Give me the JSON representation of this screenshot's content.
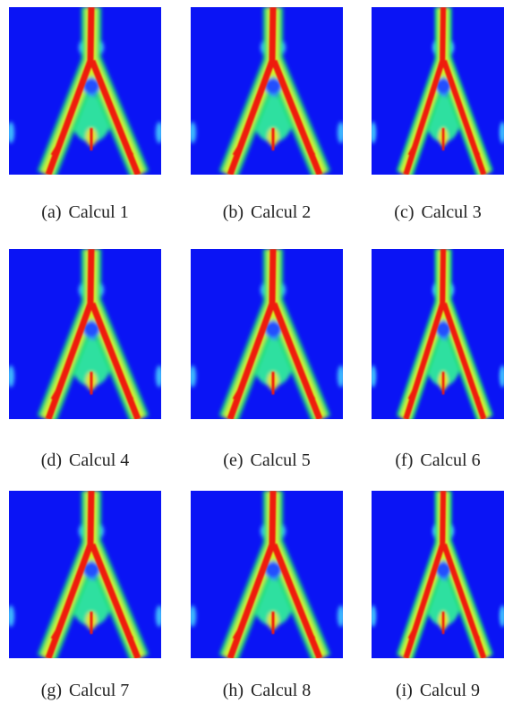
{
  "figure": {
    "panels": [
      {
        "label": "(a)",
        "caption": "Calcul 1"
      },
      {
        "label": "(b)",
        "caption": "Calcul 2"
      },
      {
        "label": "(c)",
        "caption": "Calcul 3"
      },
      {
        "label": "(d)",
        "caption": "Calcul 4"
      },
      {
        "label": "(e)",
        "caption": "Calcul 5"
      },
      {
        "label": "(f)",
        "caption": "Calcul 6"
      },
      {
        "label": "(g)",
        "caption": "Calcul 7"
      },
      {
        "label": "(h)",
        "caption": "Calcul 8"
      },
      {
        "label": "(i)",
        "caption": "Calcul 9"
      }
    ]
  }
}
